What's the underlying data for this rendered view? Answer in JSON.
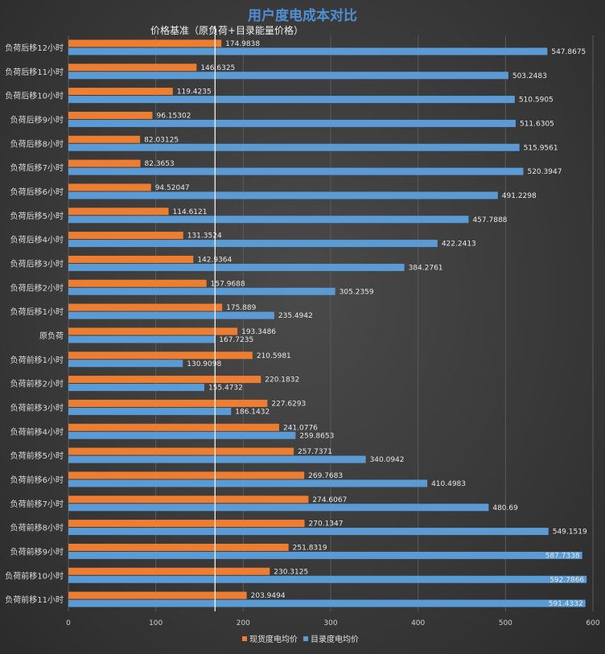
{
  "chart_data": {
    "type": "bar",
    "orientation": "horizontal",
    "title": "用户度电成本对比",
    "reference_line": {
      "value": 167.7235,
      "label": "价格基准（原负荷+目录能量价格）"
    },
    "categories": [
      "负荷后移12小时",
      "负荷后移11小时",
      "负荷后移10小时",
      "负荷后移9小时",
      "负荷后移8小时",
      "负荷后移7小时",
      "负荷后移6小时",
      "负荷后移5小时",
      "负荷后移4小时",
      "负荷后移3小时",
      "负荷后移2小时",
      "负荷后移1小时",
      "原负荷",
      "负荷前移1小时",
      "负荷前移2小时",
      "负荷前移3小时",
      "负荷前移4小时",
      "负荷前移5小时",
      "负荷前移6小时",
      "负荷前移7小时",
      "负荷前移8小时",
      "负荷前移9小时",
      "负荷前移10小时",
      "负荷前移11小时"
    ],
    "series": [
      {
        "name": "现货度电均价",
        "color": "#ed7d31",
        "values": [
          174.9838,
          146.6325,
          119.4235,
          96.15302,
          82.03125,
          82.3653,
          94.52047,
          114.6121,
          131.3524,
          142.9364,
          157.9688,
          175.889,
          193.3486,
          210.5981,
          220.1832,
          227.6293,
          241.0776,
          257.7371,
          269.7683,
          274.6067,
          270.1347,
          251.8319,
          230.3125,
          203.9494
        ],
        "labels": [
          "174.9838",
          "146.6325",
          "119.4235",
          "96.15302",
          "82.03125",
          "82.3653",
          "94.52047",
          "114.6121",
          "131.3524",
          "142.9364",
          "157.9688",
          "175.889",
          "193.3486",
          "210.5981",
          "220.1832",
          "227.6293",
          "241.0776",
          "257.7371",
          "269.7683",
          "274.6067",
          "270.1347",
          "251.8319",
          "230.3125",
          "203.9494"
        ]
      },
      {
        "name": "目录度电均价",
        "color": "#5b9bd5",
        "values": [
          547.8675,
          503.2483,
          510.5905,
          511.6305,
          515.9561,
          520.3947,
          491.2298,
          457.7888,
          422.2413,
          384.2761,
          305.2359,
          235.4942,
          167.7235,
          130.9098,
          155.4732,
          186.1432,
          259.8653,
          340.0942,
          410.4983,
          480.69,
          549.1519,
          587.7338,
          592.7866,
          591.4332
        ],
        "labels": [
          "547.8675",
          "503.2483",
          "510.5905",
          "511.6305",
          "515.9561",
          "520.3947",
          "491.2298",
          "457.7888",
          "422.2413",
          "384.2761",
          "305.2359",
          "235.4942",
          "167.7235",
          "130.9098",
          "155.4732",
          "186.1432",
          "259.8653",
          "340.0942",
          "410.4983",
          "480.69",
          "549.1519",
          "587.7338",
          "592.7866",
          "591.4332"
        ]
      }
    ],
    "xlim": [
      0,
      600
    ],
    "xticks": [
      "0",
      "100",
      "200",
      "300",
      "400",
      "500",
      "600"
    ],
    "grid": true,
    "legend_position": "bottom"
  }
}
